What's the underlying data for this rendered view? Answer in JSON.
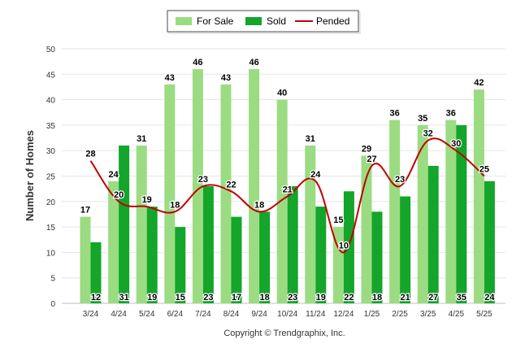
{
  "chart_data": {
    "type": "bar",
    "title": "",
    "xlabel": "",
    "ylabel": "Number of Homes",
    "ylim": [
      0,
      50
    ],
    "yticks": [
      0,
      5,
      10,
      15,
      20,
      25,
      30,
      35,
      40,
      45,
      50
    ],
    "grid": true,
    "legend_position": "top-center",
    "categories": [
      "3/24",
      "4/24",
      "5/24",
      "6/24",
      "7/24",
      "8/24",
      "9/24",
      "10/24",
      "11/24",
      "12/24",
      "1/25",
      "2/25",
      "3/25",
      "4/25",
      "5/25"
    ],
    "series": [
      {
        "name": "For Sale",
        "type": "bar",
        "color": "#9bdc82",
        "values": [
          17,
          24,
          31,
          43,
          46,
          43,
          46,
          40,
          31,
          15,
          29,
          36,
          35,
          36,
          42
        ]
      },
      {
        "name": "Sold",
        "type": "bar",
        "color": "#14a52b",
        "values": [
          12,
          31,
          19,
          15,
          23,
          17,
          18,
          23,
          19,
          22,
          18,
          21,
          27,
          35,
          24
        ]
      },
      {
        "name": "Pended",
        "type": "line",
        "color": "#c00000",
        "values": [
          28,
          20,
          19,
          18,
          23,
          22,
          18,
          21,
          24,
          10,
          27,
          23,
          32,
          30,
          25
        ]
      }
    ]
  },
  "footer": {
    "copyright": "Copyright © Trendgraphix, Inc."
  }
}
